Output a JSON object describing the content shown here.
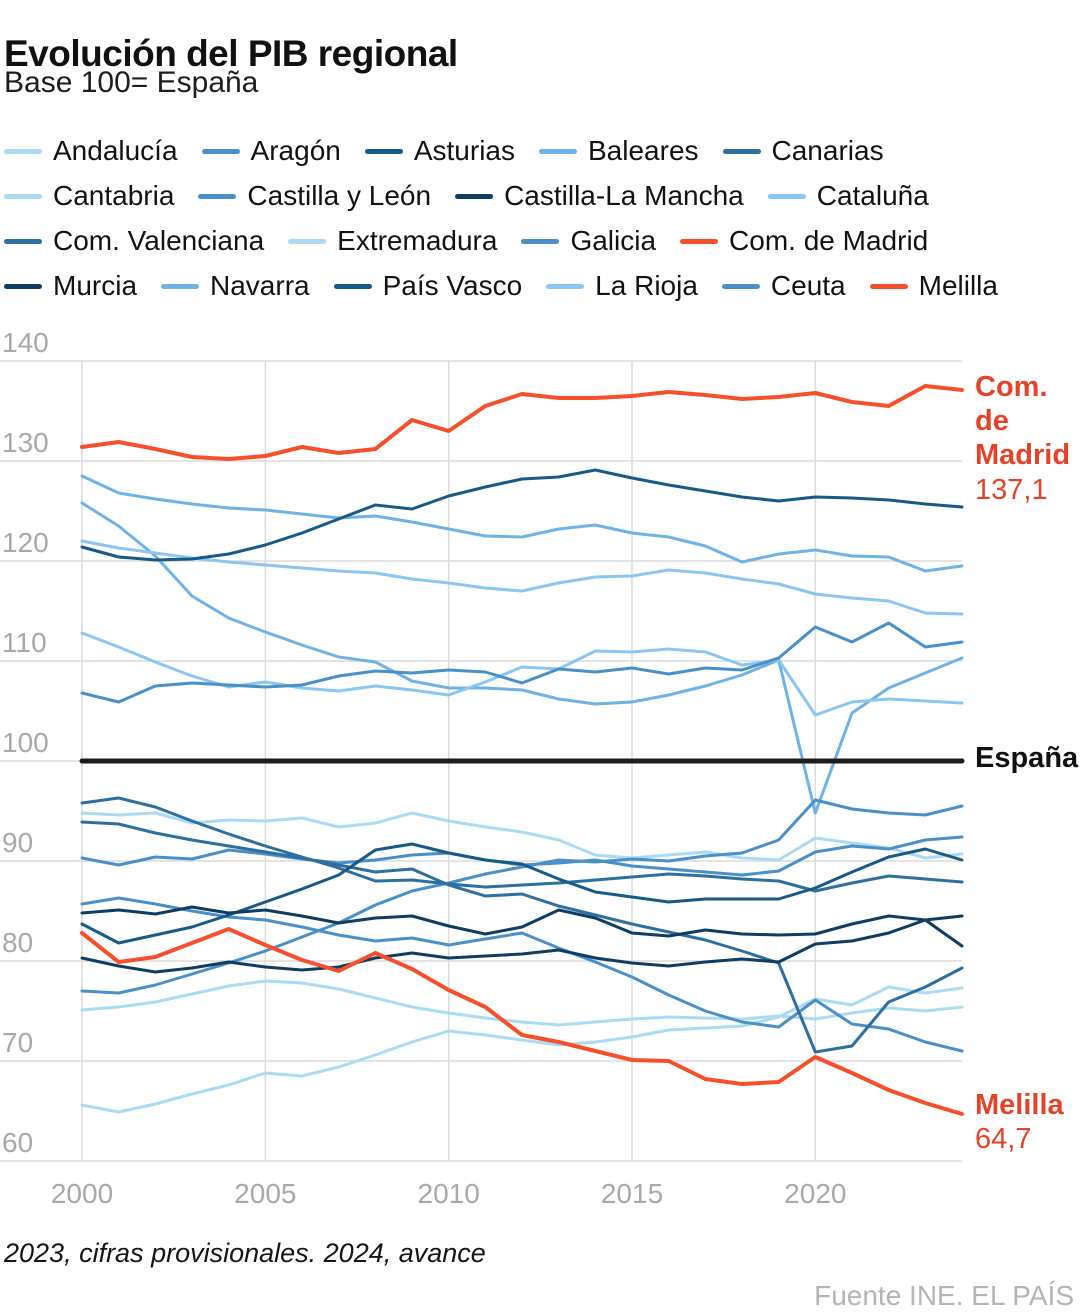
{
  "page": {
    "title": "Evolución del PIB regional",
    "subtitle": "Base 100= España",
    "footnote": "2023, cifras provisionales. 2024, avance",
    "source": "Fuente INE. EL PAÍS"
  },
  "colors": {
    "background": "#ffffff",
    "grid": "#dcdcdc",
    "axis_text": "#a9a9a9",
    "accent_red": "#f5502b",
    "baseline_black": "#1d1d1b",
    "blue_lightest": "#a9dcf3",
    "blue_light": "#8ac6f0",
    "blue_mid_light": "#6fb2e4",
    "blue_medium": "#4a90c8",
    "blue_dark_steel": "#2d6f9f",
    "blue_navy": "#175a87",
    "blue_darkest": "#0e3d61"
  },
  "chart_data": {
    "type": "line",
    "title": "Evolución del PIB regional",
    "subtitle": "Base 100= España",
    "xlabel": "",
    "ylabel": "",
    "x": [
      2000,
      2001,
      2002,
      2003,
      2004,
      2005,
      2006,
      2007,
      2008,
      2009,
      2010,
      2011,
      2012,
      2013,
      2014,
      2015,
      2016,
      2017,
      2018,
      2019,
      2020,
      2021,
      2022,
      2023,
      2024
    ],
    "x_ticks": [
      2000,
      2005,
      2010,
      2015,
      2020
    ],
    "y_ticks": [
      140,
      130,
      120,
      110,
      100,
      90,
      80,
      70,
      60
    ],
    "ylim": [
      60,
      140
    ],
    "grid": true,
    "legend_position": "top",
    "annotations": {
      "madrid": {
        "label": "Com. de Madrid",
        "value": "137,1"
      },
      "espana": {
        "label": "España"
      },
      "melilla": {
        "label": "Melilla",
        "value": "64,7"
      }
    },
    "series": [
      {
        "name": "Andalucía",
        "color": "#a9dcf3",
        "width": 3,
        "z": 1,
        "legend": true,
        "values": [
          75.1,
          75.4,
          75.9,
          76.7,
          77.5,
          78.0,
          77.8,
          77.2,
          76.3,
          75.4,
          74.8,
          74.3,
          73.9,
          73.6,
          73.9,
          74.2,
          74.4,
          74.3,
          74.2,
          74.5,
          74.2,
          74.8,
          75.3,
          75.0,
          75.4
        ]
      },
      {
        "name": "Aragón",
        "color": "#4a90c8",
        "width": 3,
        "z": 3,
        "legend": true,
        "values": [
          106.8,
          105.9,
          107.5,
          107.8,
          107.6,
          107.4,
          107.6,
          108.5,
          109.0,
          108.8,
          109.1,
          108.9,
          107.8,
          109.2,
          108.9,
          109.3,
          108.7,
          109.3,
          109.1,
          110.3,
          113.4,
          111.9,
          113.8,
          111.4,
          111.9
        ]
      },
      {
        "name": "Asturias",
        "color": "#175a87",
        "width": 3,
        "z": 5,
        "legend": true,
        "values": [
          83.7,
          81.8,
          82.6,
          83.4,
          84.6,
          85.9,
          87.2,
          88.6,
          91.1,
          91.7,
          90.8,
          90.1,
          89.7,
          88.2,
          86.9,
          86.4,
          85.9,
          86.2,
          86.2,
          86.2,
          87.3,
          88.9,
          90.4,
          91.2,
          90.1
        ]
      },
      {
        "name": "Baleares",
        "color": "#6fb2e4",
        "width": 3,
        "z": 2,
        "legend": true,
        "values": [
          125.8,
          123.5,
          120.5,
          116.5,
          114.3,
          112.9,
          111.6,
          110.4,
          109.9,
          108.0,
          107.3,
          107.3,
          107.1,
          106.2,
          105.7,
          105.9,
          106.6,
          107.5,
          108.6,
          110.1,
          94.8,
          104.8,
          107.3,
          108.8,
          110.3
        ]
      },
      {
        "name": "Canarias",
        "color": "#2d6f9f",
        "width": 3,
        "z": 4,
        "legend": true,
        "values": [
          93.9,
          93.7,
          92.8,
          92.1,
          91.5,
          90.9,
          90.3,
          89.6,
          88.9,
          89.2,
          87.6,
          86.5,
          86.7,
          85.5,
          84.6,
          83.7,
          82.9,
          82.1,
          81.0,
          79.8,
          70.9,
          71.5,
          75.9,
          77.4,
          79.3
        ]
      },
      {
        "name": "Cantabria",
        "color": "#a9dcf3",
        "width": 3,
        "z": 1,
        "legend": true,
        "values": [
          94.8,
          94.6,
          94.8,
          93.8,
          94.1,
          94.0,
          94.3,
          93.4,
          93.8,
          94.8,
          94.0,
          93.4,
          92.9,
          92.1,
          90.6,
          90.3,
          90.6,
          90.9,
          90.3,
          90.1,
          92.3,
          91.8,
          91.3,
          90.3,
          90.7
        ]
      },
      {
        "name": "Castilla y León",
        "color": "#4a90c8",
        "width": 3,
        "z": 3,
        "legend": true,
        "values": [
          90.3,
          89.6,
          90.4,
          90.2,
          91.1,
          90.7,
          90.2,
          89.8,
          90.1,
          90.6,
          90.8,
          90.1,
          89.6,
          89.8,
          90.1,
          89.5,
          89.2,
          88.9,
          88.6,
          89.0,
          90.9,
          91.5,
          91.2,
          92.1,
          92.4
        ]
      },
      {
        "name": "Castilla-La Mancha",
        "color": "#0e3d61",
        "width": 3,
        "z": 6,
        "legend": true,
        "values": [
          80.3,
          79.5,
          78.9,
          79.3,
          79.9,
          79.4,
          79.1,
          79.4,
          80.3,
          80.8,
          80.3,
          80.5,
          80.7,
          81.1,
          80.3,
          79.8,
          79.5,
          79.9,
          80.2,
          79.9,
          81.7,
          82.0,
          82.8,
          84.1,
          81.5
        ]
      },
      {
        "name": "Cataluña",
        "color": "#8ac6f0",
        "width": 3,
        "z": 2,
        "legend": true,
        "values": [
          122.0,
          121.3,
          120.8,
          120.3,
          119.9,
          119.6,
          119.3,
          119.0,
          118.8,
          118.2,
          117.8,
          117.3,
          117.0,
          117.8,
          118.4,
          118.5,
          119.1,
          118.8,
          118.2,
          117.7,
          116.7,
          116.3,
          116.0,
          114.8,
          114.7
        ]
      },
      {
        "name": "Com. Valenciana",
        "color": "#2d6f9f",
        "width": 3,
        "z": 4,
        "legend": true,
        "values": [
          95.8,
          96.3,
          95.4,
          94.0,
          92.7,
          91.5,
          90.4,
          89.3,
          88.0,
          88.1,
          87.7,
          87.4,
          87.6,
          87.8,
          88.1,
          88.4,
          88.7,
          88.5,
          88.2,
          88.0,
          87.0,
          87.8,
          88.5,
          88.2,
          87.9
        ]
      },
      {
        "name": "Extremadura",
        "color": "#a9dcf3",
        "width": 3,
        "z": 1,
        "legend": true,
        "values": [
          65.6,
          64.9,
          65.7,
          66.7,
          67.6,
          68.8,
          68.5,
          69.4,
          70.6,
          71.9,
          73.0,
          72.6,
          72.1,
          71.6,
          71.9,
          72.4,
          73.1,
          73.3,
          73.5,
          74.4,
          76.2,
          75.6,
          77.4,
          76.8,
          77.3
        ]
      },
      {
        "name": "Galicia",
        "color": "#4a90c8",
        "width": 3,
        "z": 3,
        "legend": true,
        "values": [
          77.0,
          76.8,
          77.6,
          78.7,
          79.8,
          81.0,
          82.4,
          83.8,
          85.6,
          87.0,
          87.8,
          88.7,
          89.4,
          90.1,
          89.9,
          90.2,
          90.0,
          90.5,
          90.8,
          92.1,
          96.1,
          95.2,
          94.8,
          94.6,
          95.5
        ]
      },
      {
        "name": "Com. de Madrid",
        "color": "#f5502b",
        "width": 4,
        "z": 7,
        "legend": true,
        "values": [
          131.4,
          131.9,
          131.2,
          130.4,
          130.2,
          130.5,
          131.4,
          130.8,
          131.2,
          134.1,
          133.0,
          135.5,
          136.7,
          136.3,
          136.3,
          136.5,
          136.9,
          136.6,
          136.2,
          136.4,
          136.8,
          135.9,
          135.5,
          137.5,
          137.1
        ]
      },
      {
        "name": "Murcia",
        "color": "#0e3d61",
        "width": 3,
        "z": 6,
        "legend": true,
        "values": [
          84.8,
          85.1,
          84.7,
          85.4,
          84.8,
          85.1,
          84.5,
          83.8,
          84.3,
          84.5,
          83.5,
          82.7,
          83.4,
          85.1,
          84.3,
          82.8,
          82.5,
          83.1,
          82.7,
          82.6,
          82.7,
          83.7,
          84.5,
          84.1,
          84.5
        ]
      },
      {
        "name": "Navarra",
        "color": "#6fb2e4",
        "width": 3,
        "z": 2,
        "legend": true,
        "values": [
          128.5,
          126.8,
          126.2,
          125.7,
          125.3,
          125.1,
          124.7,
          124.3,
          124.5,
          123.9,
          123.2,
          122.5,
          122.4,
          123.2,
          123.6,
          122.8,
          122.4,
          121.5,
          119.9,
          120.7,
          121.1,
          120.5,
          120.4,
          119.0,
          119.5
        ]
      },
      {
        "name": "País Vasco",
        "color": "#175a87",
        "width": 3,
        "z": 5,
        "legend": true,
        "values": [
          121.4,
          120.4,
          120.1,
          120.2,
          120.7,
          121.6,
          122.8,
          124.2,
          125.6,
          125.2,
          126.5,
          127.4,
          128.2,
          128.4,
          129.1,
          128.3,
          127.6,
          127.0,
          126.4,
          126.0,
          126.4,
          126.3,
          126.1,
          125.7,
          125.4
        ]
      },
      {
        "name": "La Rioja",
        "color": "#8ac6f0",
        "width": 3,
        "z": 2,
        "legend": true,
        "values": [
          112.8,
          111.4,
          109.9,
          108.5,
          107.4,
          107.9,
          107.3,
          107.0,
          107.5,
          107.1,
          106.6,
          107.9,
          109.4,
          109.2,
          111.0,
          110.9,
          111.2,
          110.9,
          109.6,
          110.1,
          104.6,
          105.9,
          106.2,
          106.0,
          105.8
        ]
      },
      {
        "name": "Ceuta",
        "color": "#4a90c8",
        "width": 3,
        "z": 3,
        "legend": true,
        "values": [
          85.7,
          86.3,
          85.7,
          85.0,
          84.4,
          84.1,
          83.4,
          82.6,
          82.0,
          82.3,
          81.6,
          82.2,
          82.8,
          81.3,
          79.9,
          78.4,
          76.6,
          75.0,
          73.9,
          73.4,
          76.1,
          73.7,
          73.2,
          71.9,
          71.0
        ]
      },
      {
        "name": "Melilla",
        "color": "#f5502b",
        "width": 4,
        "z": 7,
        "legend": true,
        "values": [
          82.8,
          79.9,
          80.4,
          81.8,
          83.2,
          81.6,
          80.1,
          79.0,
          80.8,
          79.2,
          77.1,
          75.4,
          72.6,
          71.9,
          71.0,
          70.1,
          70.0,
          68.2,
          67.7,
          67.9,
          70.4,
          68.8,
          67.1,
          65.8,
          64.7
        ]
      },
      {
        "name": "España",
        "color": "#1d1d1b",
        "width": 5,
        "z": 8,
        "legend": false,
        "values": [
          100,
          100,
          100,
          100,
          100,
          100,
          100,
          100,
          100,
          100,
          100,
          100,
          100,
          100,
          100,
          100,
          100,
          100,
          100,
          100,
          100,
          100,
          100,
          100,
          100
        ]
      }
    ]
  }
}
